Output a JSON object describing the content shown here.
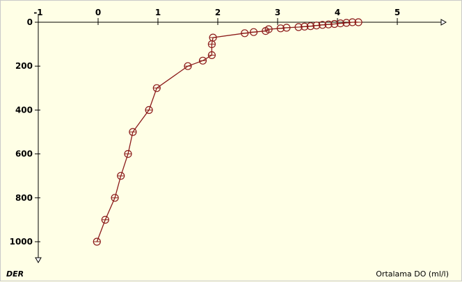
{
  "chart_data": {
    "type": "scatter",
    "title": "",
    "xlabel": "Ortalama DO (ml/l)",
    "ylabel": "DER",
    "x_ticks": [
      -1,
      0,
      1,
      2,
      3,
      4,
      5
    ],
    "y_ticks": [
      0,
      200,
      400,
      600,
      800,
      1000
    ],
    "xlim": [
      -1,
      5.8
    ],
    "ylim": [
      0,
      1100
    ],
    "y_inverted": true,
    "grid": false,
    "series": [
      {
        "x": [
          4.35,
          4.25,
          4.15,
          4.05,
          3.95,
          3.85,
          3.75,
          3.65,
          3.55,
          3.45,
          3.35,
          3.15,
          3.05,
          2.85,
          2.8,
          2.6,
          2.45,
          1.92,
          1.9,
          1.9,
          1.75,
          1.5,
          0.98,
          0.85,
          0.58,
          0.5,
          0.38,
          0.28,
          0.12,
          -0.02
        ],
        "y": [
          0,
          0,
          3,
          5,
          8,
          10,
          12,
          15,
          18,
          20,
          22,
          25,
          28,
          32,
          40,
          45,
          50,
          70,
          100,
          150,
          175,
          200,
          300,
          400,
          500,
          600,
          700,
          800,
          900,
          1000
        ],
        "line_style": "solid",
        "marker": "circle"
      }
    ],
    "colors": {
      "series": "#8b1a1a",
      "axis": "#000000",
      "background": "#ffffe6",
      "border": "#c9c9c9"
    }
  }
}
